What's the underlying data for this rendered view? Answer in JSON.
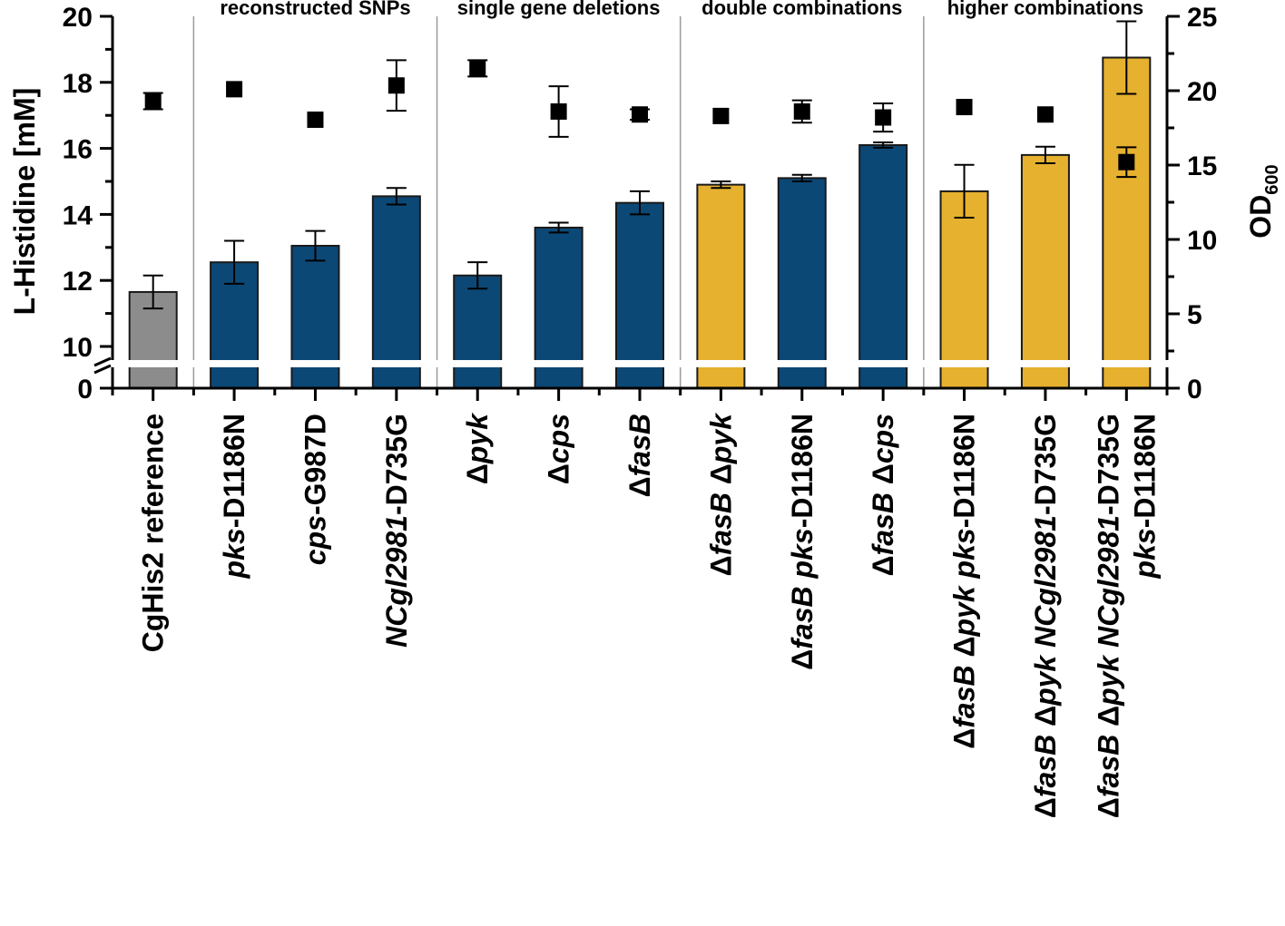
{
  "chart_data": {
    "type": "bar",
    "title": "",
    "ylabel": "L-Histidine [mM]",
    "y2label_main": "OD",
    "y2label_sub": "600",
    "ylim_lower": [
      0,
      1
    ],
    "ylim_upper": [
      10,
      20
    ],
    "y_ticks_lower": [
      "0"
    ],
    "y_ticks_upper": [
      "10",
      "12",
      "14",
      "16",
      "18",
      "20"
    ],
    "y2lim": [
      0,
      25
    ],
    "y2_ticks": [
      "0",
      "5",
      "10",
      "15",
      "20",
      "25"
    ],
    "groups": [
      {
        "label": "reconstructed SNPs",
        "start": 1,
        "end": 3
      },
      {
        "label": "single gene deletions",
        "start": 4,
        "end": 6
      },
      {
        "label": "double combinations",
        "start": 7,
        "end": 9
      },
      {
        "label": "higher combinations",
        "start": 10,
        "end": 12
      }
    ],
    "categories": [
      {
        "lines": [
          [
            {
              "t": "CgHis2 reference",
              "i": false
            }
          ]
        ]
      },
      {
        "lines": [
          [
            {
              "t": "pks",
              "i": true
            },
            {
              "t": "-D1186N",
              "i": false
            }
          ]
        ]
      },
      {
        "lines": [
          [
            {
              "t": "cps",
              "i": true
            },
            {
              "t": "-G987D",
              "i": false
            }
          ]
        ]
      },
      {
        "lines": [
          [
            {
              "t": "NCgl2981",
              "i": true
            },
            {
              "t": "-D735G",
              "i": false
            }
          ]
        ]
      },
      {
        "lines": [
          [
            {
              "t": "Δ",
              "i": false
            },
            {
              "t": "pyk",
              "i": true
            }
          ]
        ]
      },
      {
        "lines": [
          [
            {
              "t": "Δ",
              "i": false
            },
            {
              "t": "cps",
              "i": true
            }
          ]
        ]
      },
      {
        "lines": [
          [
            {
              "t": "Δ",
              "i": false
            },
            {
              "t": "fasB",
              "i": true
            }
          ]
        ]
      },
      {
        "lines": [
          [
            {
              "t": "Δ",
              "i": false
            },
            {
              "t": "fasB",
              "i": true
            },
            {
              "t": " Δ",
              "i": false
            },
            {
              "t": "pyk",
              "i": true
            }
          ]
        ]
      },
      {
        "lines": [
          [
            {
              "t": "Δ",
              "i": false
            },
            {
              "t": "fasB pks",
              "i": true
            },
            {
              "t": "-D1186N",
              "i": false
            }
          ]
        ]
      },
      {
        "lines": [
          [
            {
              "t": "Δ",
              "i": false
            },
            {
              "t": "fasB",
              "i": true
            },
            {
              "t": " Δ",
              "i": false
            },
            {
              "t": "cps",
              "i": true
            }
          ]
        ]
      },
      {
        "lines": [
          [
            {
              "t": "Δ",
              "i": false
            },
            {
              "t": "fasB",
              "i": true
            },
            {
              "t": " Δ",
              "i": false
            },
            {
              "t": "pyk pks",
              "i": true
            },
            {
              "t": "-D1186N",
              "i": false
            }
          ]
        ]
      },
      {
        "lines": [
          [
            {
              "t": "Δ",
              "i": false
            },
            {
              "t": "fasB",
              "i": true
            },
            {
              "t": " Δ",
              "i": false
            },
            {
              "t": "pyk NCgl2981",
              "i": true
            },
            {
              "t": "-D735G",
              "i": false
            }
          ]
        ]
      },
      {
        "lines": [
          [
            {
              "t": "Δ",
              "i": false
            },
            {
              "t": "fasB",
              "i": true
            },
            {
              "t": " Δ",
              "i": false
            },
            {
              "t": "pyk NCgl2981",
              "i": true
            },
            {
              "t": "-D735G",
              "i": false
            }
          ],
          [
            {
              "t": "pks",
              "i": true
            },
            {
              "t": "-D1186N",
              "i": false
            }
          ]
        ]
      }
    ],
    "series": [
      {
        "axis": "left",
        "kind": "bar",
        "values": [
          11.65,
          12.55,
          13.05,
          14.55,
          12.15,
          13.6,
          14.35,
          14.9,
          15.1,
          16.1,
          14.7,
          15.8,
          18.75
        ],
        "errors": [
          0.5,
          0.65,
          0.45,
          0.25,
          0.4,
          0.15,
          0.35,
          0.1,
          0.1,
          0.08,
          0.8,
          0.25,
          1.1
        ],
        "colors": [
          "#8c8c8c",
          "#0c4876",
          "#0c4876",
          "#0c4876",
          "#0c4876",
          "#0c4876",
          "#0c4876",
          "#e6b12f",
          "#0c4876",
          "#0c4876",
          "#e6b12f",
          "#e6b12f",
          "#e6b12f"
        ]
      },
      {
        "axis": "right",
        "kind": "marker",
        "values": [
          19.3,
          20.1,
          18.05,
          20.35,
          21.5,
          18.6,
          18.4,
          18.3,
          18.6,
          18.2,
          18.9,
          18.4,
          15.2
        ],
        "errors": [
          0.55,
          0.0,
          0.0,
          1.7,
          0.55,
          1.7,
          0.35,
          0.0,
          0.75,
          0.95,
          0.0,
          0.0,
          1.0
        ]
      }
    ],
    "colors": {
      "bar_edge": "#1a1a1a",
      "marker": "#000000",
      "break_gap": "#ffffff",
      "separator": "#9a9a9a"
    }
  }
}
